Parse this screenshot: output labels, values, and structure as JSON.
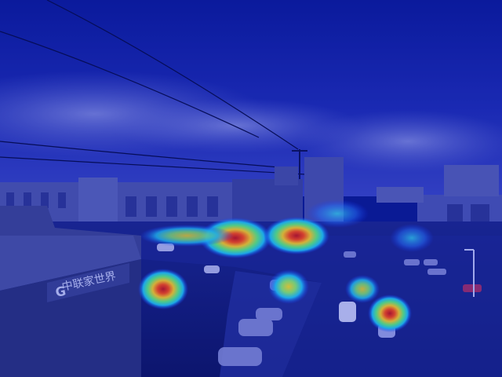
{
  "image": {
    "kind": "heatmap-overlay-photo",
    "subject": "street-intersection-with-cars-and-buildings",
    "colormap": "jet",
    "colors": {
      "sky_top": "#0b1f9e",
      "sky_bottom": "#3b49c9",
      "cloud": "#7d86d9",
      "ground": "#121c6a",
      "building": "#4c56a8",
      "hot": "#d42018",
      "warm": "#f6c21a",
      "cool": "#27d8e8"
    },
    "signage": {
      "left_building_sign": "中联家世界"
    },
    "heatmap_regions": [
      {
        "label": "car-cluster-far-left",
        "intensity": 0.95
      },
      {
        "label": "car-cluster-center",
        "intensity": 0.9
      },
      {
        "label": "car-near-left",
        "intensity": 0.9
      },
      {
        "label": "car-center-lower",
        "intensity": 0.55
      },
      {
        "label": "car-right-lower",
        "intensity": 0.85
      },
      {
        "label": "car-right-mid",
        "intensity": 0.5
      },
      {
        "label": "far-road",
        "intensity": 0.35
      },
      {
        "label": "right-road",
        "intensity": 0.35
      }
    ]
  }
}
